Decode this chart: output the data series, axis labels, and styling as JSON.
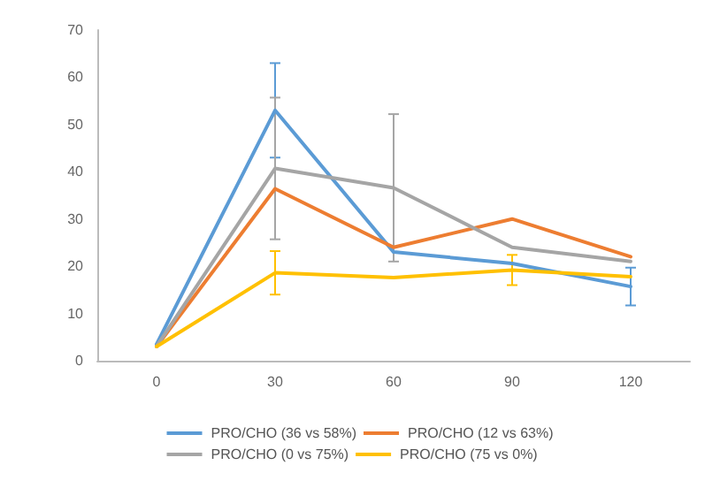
{
  "chart_data": {
    "type": "line",
    "categories": [
      "0",
      "30",
      "60",
      "90",
      "120"
    ],
    "series": [
      {
        "name": "PRO/CHO (36 vs 58%)",
        "color": "#5b9bd5",
        "values": [
          3.5,
          53,
          23,
          20.6,
          15.7
        ],
        "errors": [
          null,
          10,
          null,
          null,
          4
        ]
      },
      {
        "name": "PRO/CHO (12 vs 63%)",
        "color": "#ed7d31",
        "values": [
          3,
          36.4,
          24,
          30,
          22
        ],
        "errors": [
          null,
          null,
          null,
          null,
          null
        ]
      },
      {
        "name": "PRO/CHO (0 vs 75%)",
        "color": "#a5a5a5",
        "values": [
          3,
          40.7,
          36.6,
          24,
          21
        ],
        "errors": [
          null,
          15,
          15.6,
          null,
          null
        ]
      },
      {
        "name": "PRO/CHO (75 vs 0%)",
        "color": "#ffc000",
        "values": [
          3,
          18.6,
          17.6,
          19.2,
          17.8
        ],
        "errors": [
          null,
          4.6,
          null,
          3.2,
          null
        ]
      }
    ],
    "ylim": [
      0,
      70
    ],
    "yticks": [
      0,
      10,
      20,
      30,
      40,
      50,
      60,
      70
    ],
    "grid": false,
    "legend": "bottom",
    "marker": "none",
    "line_style": "solid"
  }
}
